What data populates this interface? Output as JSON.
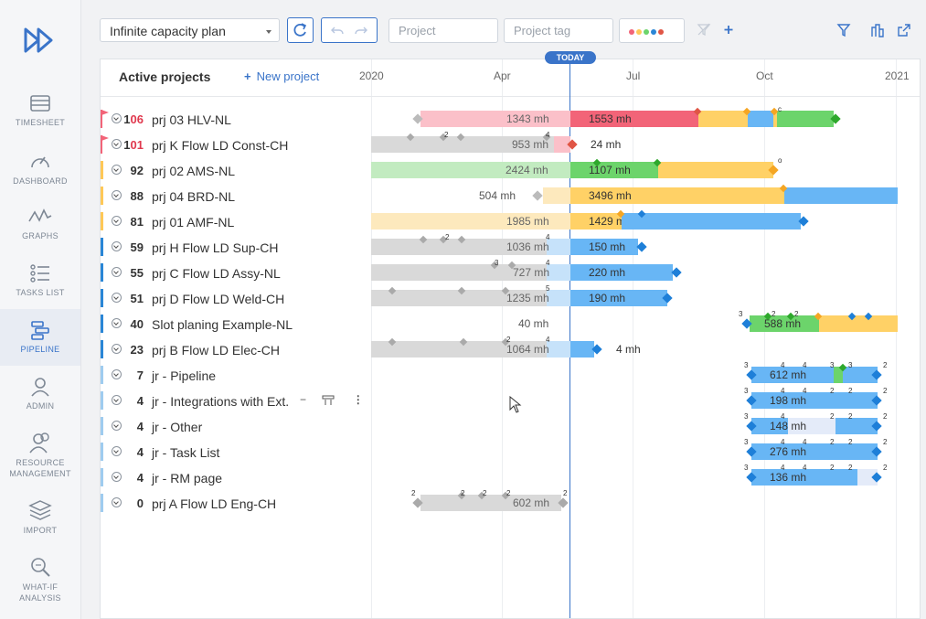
{
  "sidebar": {
    "items": [
      {
        "label": "TIMESHEET",
        "icon": "timesheet-icon"
      },
      {
        "label": "DASHBOARD",
        "icon": "dashboard-icon"
      },
      {
        "label": "GRAPHS",
        "icon": "graphs-icon"
      },
      {
        "label": "TASKS LIST",
        "icon": "tasks-list-icon"
      },
      {
        "label": "PIPELINE",
        "icon": "pipeline-icon",
        "active": true
      },
      {
        "label": "ADMIN",
        "icon": "admin-icon"
      },
      {
        "label1": "RESOURCE",
        "label2": "MANAGEMENT",
        "icon": "resource-management-icon"
      },
      {
        "label": "IMPORT",
        "icon": "import-icon"
      },
      {
        "label1": "WHAT-IF",
        "label2": "ANALYSIS",
        "icon": "what-if-icon"
      }
    ]
  },
  "toolbar": {
    "plan": "Infinite capacity plan",
    "project_placeholder": "Project",
    "tag_placeholder": "Project tag"
  },
  "panel": {
    "title": "Active projects",
    "new_project": "New project",
    "today": "TODAY",
    "months": [
      "2020",
      "Apr",
      "Jul",
      "Oct",
      "2021"
    ]
  },
  "colors": {
    "accent": "#3a74c9",
    "red": "#f26478",
    "yellow": "#ffd166",
    "green": "#6cd46b",
    "blue": "#68b6f5",
    "grey": "#d9d9d9"
  },
  "rows": [
    {
      "count": "106",
      "name": "prj 03 HLV-NL",
      "flag": "#f26478"
    },
    {
      "count": "101",
      "name": "prj K Flow LD Const-CH",
      "flag": "#f26478"
    },
    {
      "count": "92",
      "name": "prj 02 AMS-NL",
      "flag": "#ffc857"
    },
    {
      "count": "88",
      "name": "prj 04 BRD-NL",
      "flag": "#ffc857"
    },
    {
      "count": "81",
      "name": "prj 01 AMF-NL",
      "flag": "#ffc857"
    },
    {
      "count": "59",
      "name": "prj H Flow LD Sup-CH",
      "flag": "#2a86d6"
    },
    {
      "count": "55",
      "name": "prj C Flow LD Assy-NL",
      "flag": "#2a86d6"
    },
    {
      "count": "51",
      "name": "prj D Flow LD Weld-CH",
      "flag": "#2a86d6"
    },
    {
      "count": "40",
      "name": "Slot planing Example-NL",
      "flag": "#2a86d6"
    },
    {
      "count": "23",
      "name": "prj B Flow LD Elec-CH",
      "flag": "#2a86d6"
    },
    {
      "count": "7",
      "name": "jr - Pipeline",
      "flag": "#9fccef"
    },
    {
      "count": "4",
      "name": "jr - Integrations with Ext.",
      "flag": "#9fccef"
    },
    {
      "count": "4",
      "name": "jr - Other",
      "flag": "#9fccef"
    },
    {
      "count": "4",
      "name": "jr - Task List",
      "flag": "#9fccef"
    },
    {
      "count": "4",
      "name": "jr - RM page",
      "flag": "#9fccef"
    },
    {
      "count": "0",
      "name": "prj A Flow LD Eng-CH",
      "flag": "#9fccef"
    }
  ],
  "gantt": {
    "r0": {
      "past": "1343 mh",
      "future": "1553 mh"
    },
    "r1": {
      "past": "953 mh",
      "future": "24 mh"
    },
    "r2": {
      "past": "2424 mh",
      "future": "1107 mh"
    },
    "r3": {
      "past": "504 mh",
      "future": "3496 mh"
    },
    "r4": {
      "past": "1985 mh",
      "future": "1429 mh"
    },
    "r5": {
      "past": "1036 mh",
      "future": "150 mh"
    },
    "r6": {
      "past": "727 mh",
      "future": "220 mh"
    },
    "r7": {
      "past": "1235 mh",
      "future": "190 mh"
    },
    "r8": {
      "past": "40 mh",
      "future": "588 mh"
    },
    "r9": {
      "past": "1064 mh",
      "future": "4 mh"
    },
    "r10": {
      "future": "612 mh"
    },
    "r11": {
      "future": "198 mh"
    },
    "r12": {
      "future": "148 mh"
    },
    "r13": {
      "future": "276 mh"
    },
    "r14": {
      "future": "136 mh"
    },
    "r15": {
      "past": "602 mh"
    }
  },
  "markers": {
    "c": "c",
    "o": "o",
    "n2": "2",
    "n3": "3",
    "n4": "4",
    "n5": "5"
  }
}
